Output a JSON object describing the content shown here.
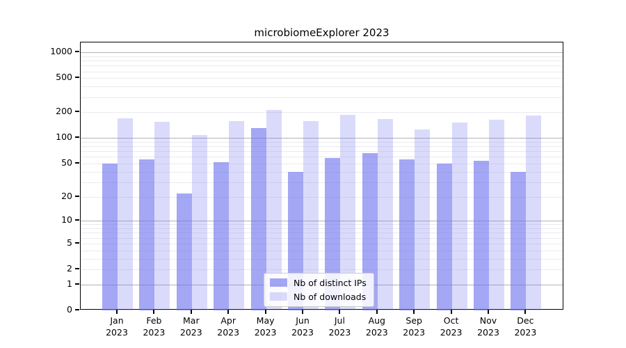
{
  "chart_data": {
    "type": "bar",
    "title": "microbiomeExplorer 2023",
    "scale": "log10(1+y)",
    "grid": true,
    "legend_position": "lower center",
    "categories": [
      "Jan",
      "Feb",
      "Mar",
      "Apr",
      "May",
      "Jun",
      "Jul",
      "Aug",
      "Sep",
      "Oct",
      "Nov",
      "Dec"
    ],
    "year": "2023",
    "series": [
      {
        "name": "Nb of distinct IPs",
        "color": "rgba(108,113,238,0.62)",
        "values": [
          50,
          56,
          22,
          52,
          130,
          40,
          58,
          66,
          56,
          50,
          54,
          40
        ]
      },
      {
        "name": "Nb of downloads",
        "color": "rgba(108,113,238,0.25)",
        "values": [
          170,
          154,
          108,
          157,
          212,
          158,
          188,
          167,
          127,
          153,
          164,
          183
        ]
      }
    ],
    "yticks": [
      0,
      1,
      2,
      5,
      10,
      20,
      50,
      100,
      200,
      500,
      1000
    ],
    "major_gridlines": [
      1,
      10,
      100,
      1000
    ],
    "minor_gridlines": [
      2,
      3,
      4,
      5,
      6,
      7,
      8,
      9,
      20,
      30,
      40,
      50,
      60,
      70,
      80,
      90,
      200,
      300,
      400,
      500,
      600,
      700,
      800,
      900
    ],
    "ylim": [
      0,
      1300
    ],
    "xlabel": "",
    "ylabel": "",
    "colors": {
      "bar_base": "#6c71ee",
      "major_grid": "#b3b3b3",
      "minor_grid": "#ebebf0",
      "axis": "#000000",
      "background": "#ffffff"
    }
  }
}
